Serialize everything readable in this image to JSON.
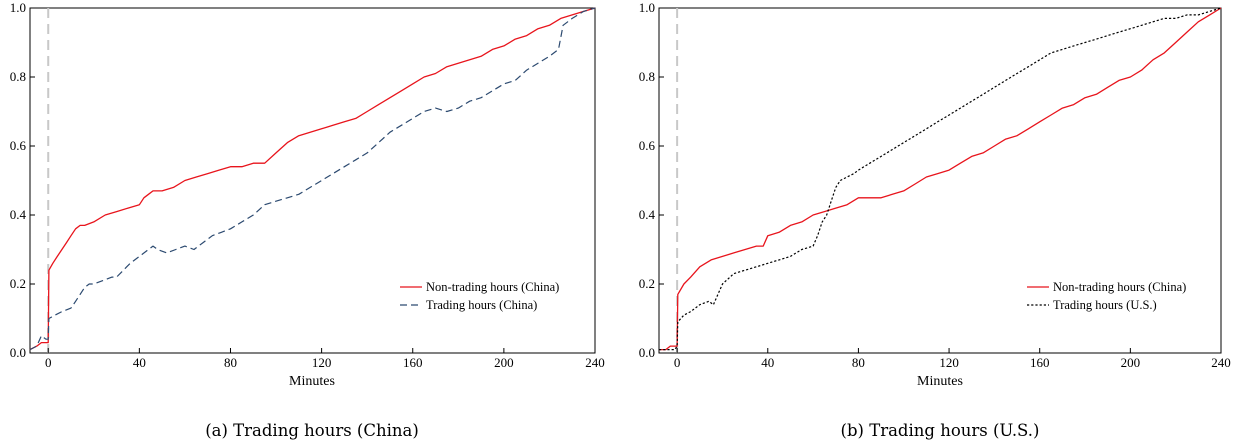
{
  "chart_data": [
    {
      "type": "line",
      "caption": "(a) Trading hours (China)",
      "xlabel": "Minutes",
      "ylabel": "",
      "xlim": [
        -8,
        240
      ],
      "ylim": [
        0,
        1
      ],
      "x_ticks": [
        0,
        40,
        80,
        120,
        160,
        200,
        240
      ],
      "y_ticks": [
        0.0,
        0.2,
        0.4,
        0.6,
        0.8,
        1.0
      ],
      "y_tick_labels": [
        "0.0",
        "0.2",
        "0.4",
        "0.6",
        "0.8",
        "1.0"
      ],
      "reference_line_x": 0,
      "legend_position": "bottom-right",
      "grid": false,
      "series": [
        {
          "name": "Non-trading hours (China)",
          "color": "#e8141c",
          "style": "solid",
          "x": [
            -8,
            -5,
            -3,
            -1,
            0,
            0.3,
            2,
            4,
            6,
            8,
            10,
            12,
            14,
            16,
            20,
            25,
            30,
            35,
            40,
            42,
            44,
            46,
            50,
            55,
            60,
            65,
            70,
            75,
            80,
            85,
            90,
            95,
            100,
            105,
            110,
            115,
            120,
            125,
            130,
            135,
            140,
            145,
            150,
            155,
            160,
            165,
            170,
            175,
            180,
            185,
            190,
            195,
            200,
            205,
            210,
            215,
            220,
            225,
            230,
            235,
            240
          ],
          "y": [
            0.01,
            0.02,
            0.03,
            0.03,
            0.03,
            0.24,
            0.26,
            0.28,
            0.3,
            0.32,
            0.34,
            0.36,
            0.37,
            0.37,
            0.38,
            0.4,
            0.41,
            0.42,
            0.43,
            0.45,
            0.46,
            0.47,
            0.47,
            0.48,
            0.5,
            0.51,
            0.52,
            0.53,
            0.54,
            0.54,
            0.55,
            0.55,
            0.58,
            0.61,
            0.63,
            0.64,
            0.65,
            0.66,
            0.67,
            0.68,
            0.7,
            0.72,
            0.74,
            0.76,
            0.78,
            0.8,
            0.81,
            0.83,
            0.84,
            0.85,
            0.86,
            0.88,
            0.89,
            0.91,
            0.92,
            0.94,
            0.95,
            0.97,
            0.98,
            0.99,
            1.0
          ]
        },
        {
          "name": "Trading hours (China)",
          "color": "#2c4a70",
          "style": "dashed",
          "x": [
            -8,
            -5,
            -3,
            -1,
            0,
            0.3,
            3,
            6,
            10,
            12,
            14,
            16,
            18,
            20,
            24,
            28,
            30,
            33,
            36,
            40,
            44,
            46,
            48,
            52,
            56,
            60,
            64,
            68,
            72,
            76,
            80,
            85,
            90,
            95,
            100,
            105,
            110,
            115,
            120,
            125,
            130,
            135,
            140,
            145,
            150,
            155,
            160,
            165,
            170,
            175,
            180,
            185,
            190,
            195,
            200,
            205,
            210,
            215,
            220,
            224,
            226,
            230,
            235,
            240
          ],
          "y": [
            0.01,
            0.02,
            0.05,
            0.04,
            0.04,
            0.1,
            0.11,
            0.12,
            0.13,
            0.15,
            0.17,
            0.19,
            0.2,
            0.2,
            0.21,
            0.22,
            0.22,
            0.24,
            0.26,
            0.28,
            0.3,
            0.31,
            0.3,
            0.29,
            0.3,
            0.31,
            0.3,
            0.32,
            0.34,
            0.35,
            0.36,
            0.38,
            0.4,
            0.43,
            0.44,
            0.45,
            0.46,
            0.48,
            0.5,
            0.52,
            0.54,
            0.56,
            0.58,
            0.61,
            0.64,
            0.66,
            0.68,
            0.7,
            0.71,
            0.7,
            0.71,
            0.73,
            0.74,
            0.76,
            0.78,
            0.79,
            0.82,
            0.84,
            0.86,
            0.88,
            0.95,
            0.97,
            0.99,
            1.0
          ]
        }
      ]
    },
    {
      "type": "line",
      "caption": "(b) Trading hours (U.S.)",
      "xlabel": "Minutes",
      "ylabel": "",
      "xlim": [
        -8,
        240
      ],
      "ylim": [
        0,
        1
      ],
      "x_ticks": [
        0,
        40,
        80,
        120,
        160,
        200,
        240
      ],
      "y_ticks": [
        0.0,
        0.2,
        0.4,
        0.6,
        0.8,
        1.0
      ],
      "y_tick_labels": [
        "0.0",
        "0.2",
        "0.4",
        "0.6",
        "0.8",
        "1.0"
      ],
      "reference_line_x": 0,
      "legend_position": "bottom-right",
      "grid": false,
      "series": [
        {
          "name": "Non-trading hours (China)",
          "color": "#e8141c",
          "style": "solid",
          "x": [
            -8,
            -5,
            -3,
            -1,
            0,
            0.3,
            3,
            6,
            10,
            15,
            20,
            25,
            30,
            35,
            38,
            40,
            45,
            50,
            55,
            60,
            65,
            70,
            75,
            80,
            85,
            90,
            95,
            100,
            105,
            110,
            115,
            120,
            125,
            130,
            135,
            140,
            145,
            150,
            155,
            160,
            165,
            170,
            175,
            180,
            185,
            190,
            195,
            200,
            205,
            210,
            215,
            220,
            225,
            230,
            235,
            240
          ],
          "y": [
            0.01,
            0.01,
            0.02,
            0.02,
            0.02,
            0.17,
            0.2,
            0.22,
            0.25,
            0.27,
            0.28,
            0.29,
            0.3,
            0.31,
            0.31,
            0.34,
            0.35,
            0.37,
            0.38,
            0.4,
            0.41,
            0.42,
            0.43,
            0.45,
            0.45,
            0.45,
            0.46,
            0.47,
            0.49,
            0.51,
            0.52,
            0.53,
            0.55,
            0.57,
            0.58,
            0.6,
            0.62,
            0.63,
            0.65,
            0.67,
            0.69,
            0.71,
            0.72,
            0.74,
            0.75,
            0.77,
            0.79,
            0.8,
            0.82,
            0.85,
            0.87,
            0.9,
            0.93,
            0.96,
            0.98,
            1.0
          ]
        },
        {
          "name": "Trading hours (U.S.)",
          "color": "#000000",
          "style": "dotted",
          "x": [
            -8,
            -5,
            -3,
            -1,
            0,
            0.3,
            3,
            6,
            10,
            14,
            16,
            20,
            25,
            30,
            35,
            40,
            45,
            50,
            55,
            60,
            62,
            64,
            66,
            68,
            70,
            72,
            75,
            78,
            80,
            85,
            90,
            95,
            100,
            105,
            110,
            115,
            120,
            125,
            130,
            135,
            140,
            145,
            150,
            155,
            160,
            165,
            170,
            175,
            180,
            185,
            190,
            195,
            200,
            205,
            210,
            215,
            220,
            225,
            230,
            235,
            240
          ],
          "y": [
            0.01,
            0.01,
            0.01,
            0.01,
            0.02,
            0.09,
            0.11,
            0.12,
            0.14,
            0.15,
            0.14,
            0.2,
            0.23,
            0.24,
            0.25,
            0.26,
            0.27,
            0.28,
            0.3,
            0.31,
            0.34,
            0.38,
            0.4,
            0.44,
            0.48,
            0.5,
            0.51,
            0.52,
            0.53,
            0.55,
            0.57,
            0.59,
            0.61,
            0.63,
            0.65,
            0.67,
            0.69,
            0.71,
            0.73,
            0.75,
            0.77,
            0.79,
            0.81,
            0.83,
            0.85,
            0.87,
            0.88,
            0.89,
            0.9,
            0.91,
            0.92,
            0.93,
            0.94,
            0.95,
            0.96,
            0.97,
            0.97,
            0.98,
            0.98,
            0.99,
            1.0
          ]
        }
      ]
    }
  ]
}
